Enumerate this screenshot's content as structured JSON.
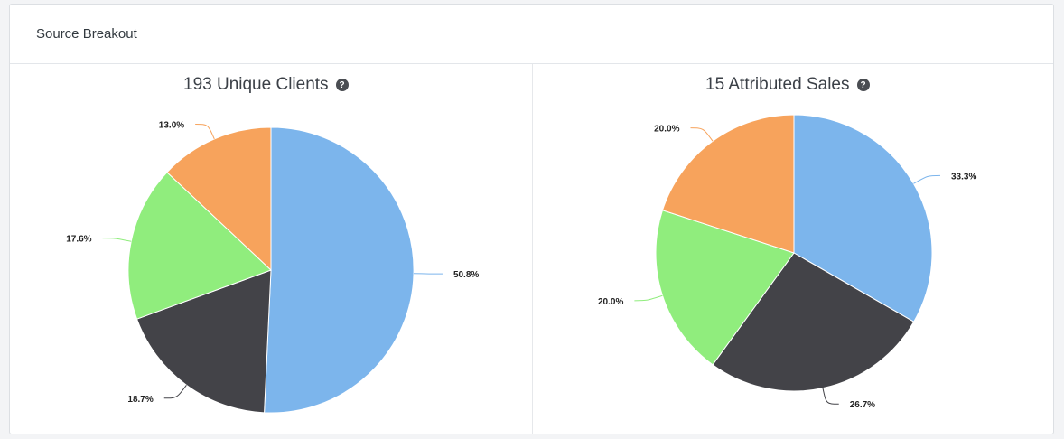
{
  "card": {
    "title": "Source Breakout"
  },
  "chart_data": [
    {
      "type": "pie",
      "title": "193 Unique Clients",
      "slices": [
        {
          "label": "50.8%",
          "value": 50.8,
          "color": "#7cb5ec"
        },
        {
          "label": "18.7%",
          "value": 18.7,
          "color": "#434348"
        },
        {
          "label": "17.6%",
          "value": 17.6,
          "color": "#90ed7d"
        },
        {
          "label": "13.0%",
          "value": 13.0,
          "color": "#f7a35c"
        }
      ]
    },
    {
      "type": "pie",
      "title": "15 Attributed Sales",
      "slices": [
        {
          "label": "33.3%",
          "value": 33.3,
          "color": "#7cb5ec"
        },
        {
          "label": "26.7%",
          "value": 26.7,
          "color": "#434348"
        },
        {
          "label": "20.0%",
          "value": 20.0,
          "color": "#90ed7d"
        },
        {
          "label": "20.0%",
          "value": 20.0,
          "color": "#f7a35c"
        }
      ]
    }
  ],
  "icons": {
    "help": "question-circle-icon"
  }
}
